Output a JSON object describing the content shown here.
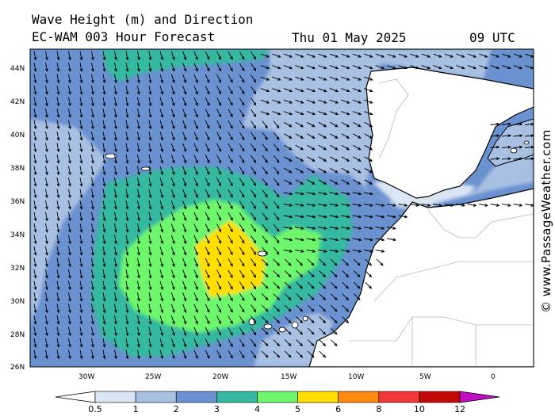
{
  "header": {
    "title": "Wave Height (m) and Direction",
    "model": "EC-WAM 003 Hour Forecast",
    "date": "Thu 01 May 2025",
    "time": "09 UTC"
  },
  "copyright": "© www.PassageWeather.com",
  "axes": {
    "lat_labels": [
      "44N",
      "42N",
      "40N",
      "38N",
      "36N",
      "34N",
      "32N",
      "30N",
      "28N",
      "26N"
    ],
    "lon_labels": [
      "30W",
      "25W",
      "20W",
      "15W",
      "10W",
      "5W",
      "0"
    ]
  },
  "legend": {
    "levels": [
      "0.5",
      "1",
      "2",
      "3",
      "4",
      "5",
      "6",
      "8",
      "10",
      "12"
    ],
    "colors": [
      "#dbe6f4",
      "#a8c0e2",
      "#6a91d0",
      "#36b9a0",
      "#6ef66c",
      "#ffde00",
      "#ff8a10",
      "#f23838",
      "#c40808",
      "#c20fc6"
    ],
    "unit": "m"
  },
  "colors": {
    "land": "#ffffff",
    "border": "#b8b8b8",
    "arrow": "#000000"
  }
}
